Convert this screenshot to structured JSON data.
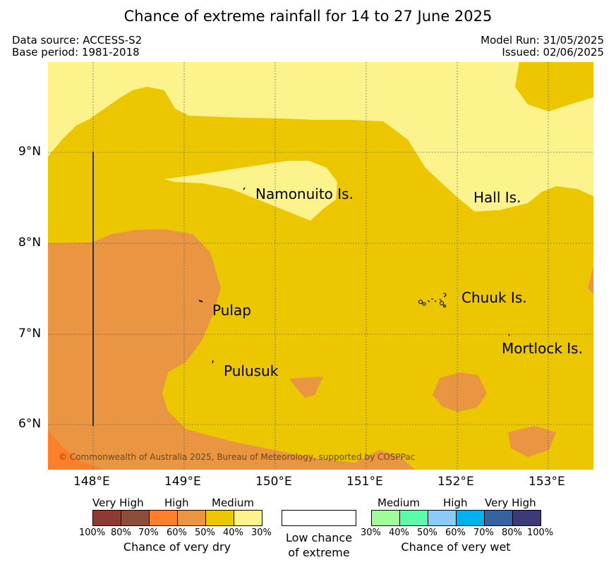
{
  "header": {
    "title": "Chance of extreme rainfall for 14 to 27 June 2025",
    "data_source": "Data source: ACCESS-S2",
    "base_period": "Base period: 1981-2018",
    "model_run": "Model Run: 31/05/2025",
    "issued": "Issued: 02/06/2025"
  },
  "map": {
    "lon_range": [
      147.5,
      153.5
    ],
    "lat_range": [
      5.5,
      9.98
    ],
    "lon_labels": [
      "148°E",
      "149°E",
      "150°E",
      "151°E",
      "152°E",
      "153°E"
    ],
    "lat_labels": [
      "9°N",
      "8°N",
      "7°N",
      "6°N"
    ],
    "places": {
      "namonuito": "Namonuito Is.",
      "hall": "Hall Is.",
      "pulap": "Pulap",
      "chuuk": "Chuuk Is.",
      "pulusuk": "Pulusuk",
      "mortlock": "Mortlock Is."
    },
    "copyright": "© Commonwealth of Australia 2025, Bureau of Meteorology, supported by COSPPac",
    "zone_colors": {
      "dry_30_40": "#fdf38c",
      "dry_40_50": "#ecc700",
      "dry_50_60": "#e99541",
      "dry_60_70": "#fd7f2a"
    }
  },
  "legend": {
    "dry": {
      "labels": {
        "very_high": "Very High",
        "high": "High",
        "medium": "Medium"
      },
      "colors": [
        "#8c3a33",
        "#8a4e3a",
        "#fd7f2a",
        "#e99541",
        "#ecc700",
        "#fdf38c"
      ],
      "ticks": [
        "100%",
        "80%",
        "70%",
        "60%",
        "50%",
        "40%",
        "30%"
      ],
      "caption": "Chance of very dry"
    },
    "neutral": {
      "caption_line1": "Low chance",
      "caption_line2": "of extreme",
      "color": "#ffffff"
    },
    "wet": {
      "labels": {
        "medium": "Medium",
        "high": "High",
        "very_high": "Very High"
      },
      "colors": [
        "#a0fb98",
        "#5bfba9",
        "#8acbfa",
        "#01b0ec",
        "#3562a0",
        "#3c3a77"
      ],
      "ticks": [
        "30%",
        "40%",
        "50%",
        "60%",
        "70%",
        "80%",
        "100%"
      ],
      "caption": "Chance of very wet"
    }
  }
}
